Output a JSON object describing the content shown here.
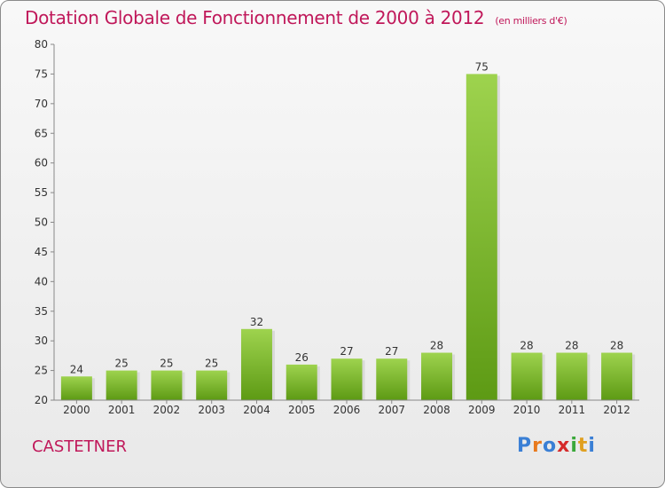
{
  "header": {
    "title": "Dotation Globale de Fonctionnement de 2000 à 2012",
    "unit": "(en milliers d'€)"
  },
  "footer": {
    "commune": "CASTETNER",
    "logo_letters": [
      "P",
      "r",
      "o",
      "x",
      "i",
      "t",
      "i"
    ],
    "logo_colors": [
      "#3a7fd5",
      "#e87a1e",
      "#3a7fd5",
      "#d52a2a",
      "#3aa83a",
      "#e0a020",
      "#3a7fd5"
    ]
  },
  "colors": {
    "accent": "#c0185a",
    "bar_top": "#9ed34e",
    "bar_bottom": "#5d9a14"
  },
  "chart_data": {
    "type": "bar",
    "title": "Dotation Globale de Fonctionnement de 2000 à 2012",
    "categories": [
      "2000",
      "2001",
      "2002",
      "2003",
      "2004",
      "2005",
      "2006",
      "2007",
      "2008",
      "2009",
      "2010",
      "2011",
      "2012"
    ],
    "values": [
      24,
      25,
      25,
      25,
      32,
      26,
      27,
      27,
      28,
      75,
      28,
      28,
      28
    ],
    "ylim": [
      20,
      80
    ],
    "yticks": [
      20,
      25,
      30,
      35,
      40,
      45,
      50,
      55,
      60,
      65,
      70,
      75,
      80
    ],
    "grid": false,
    "legend": "none"
  }
}
